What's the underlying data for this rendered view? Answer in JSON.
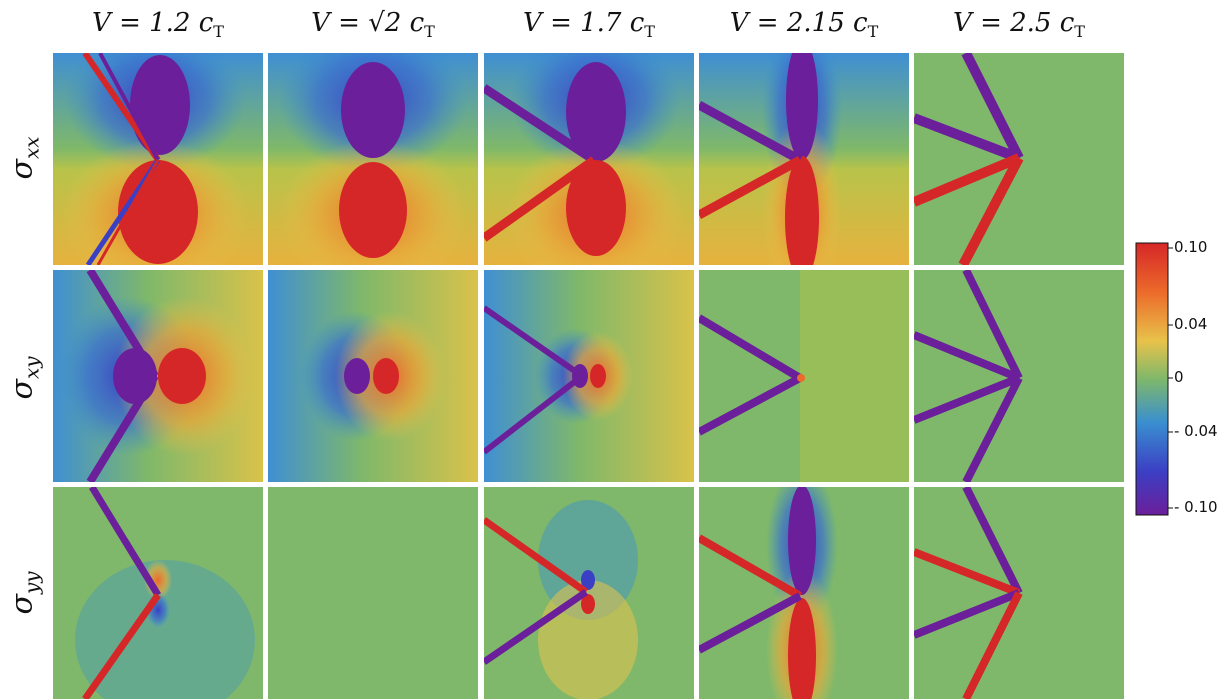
{
  "columns": [
    {
      "label": "V = 1.2 c",
      "sub": "T"
    },
    {
      "label": "V = √2 c",
      "sub": "T"
    },
    {
      "label": "V = 1.7 c",
      "sub": "T"
    },
    {
      "label": "V = 2.15 c",
      "sub": "T"
    },
    {
      "label": "V = 2.5 c",
      "sub": "T"
    }
  ],
  "rows": [
    {
      "label": "σ",
      "sub": "xx"
    },
    {
      "label": "σ",
      "sub": "xy"
    },
    {
      "label": "σ",
      "sub": "yy"
    }
  ],
  "colorbar": {
    "ticks": [
      "0.10",
      "0.04",
      "0",
      "- 0.04",
      "- 0.10"
    ],
    "colors": {
      "max": "#d62728",
      "high": "#e8a83a",
      "zero": "#7fb86a",
      "low": "#3a8fd0",
      "min": "#6b1f9a"
    }
  }
}
